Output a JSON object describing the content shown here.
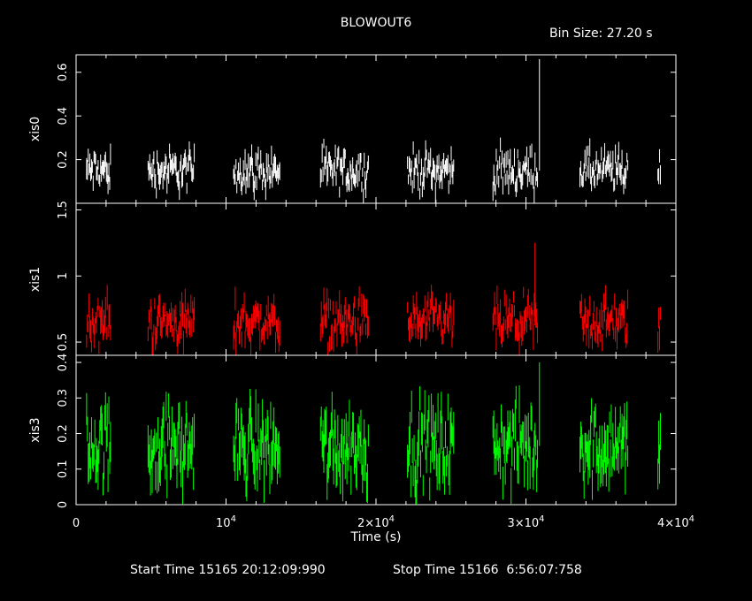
{
  "title": "BLOWOUT6",
  "bin_size_label": "Bin Size: 27.20 s",
  "xlabel": "Time (s)",
  "start_time_label": "Start Time 15165 20:12:09:990",
  "stop_time_label": "Stop Time 15166  6:56:07:758",
  "colors": {
    "background": "#000000",
    "axes": "#ffffff",
    "xis0": "#ffffff",
    "xis1": "#ff0000",
    "xis3": "#00ff00"
  },
  "chart_data": {
    "type": "scatter",
    "xlim": [
      0,
      40000
    ],
    "x_ticks": [
      {
        "value": 0,
        "label": "0"
      },
      {
        "value": 10000,
        "label": "10",
        "exp": "4"
      },
      {
        "value": 20000,
        "label": "2×10",
        "exp": "4"
      },
      {
        "value": 30000,
        "label": "3×10",
        "exp": "4"
      },
      {
        "value": 40000,
        "label": "4×10",
        "exp": "4"
      }
    ],
    "segments": [
      [
        700,
        2300
      ],
      [
        4800,
        7900
      ],
      [
        10500,
        13600
      ],
      [
        16300,
        19500
      ],
      [
        22100,
        25200
      ],
      [
        27800,
        30800
      ],
      [
        33600,
        36800
      ],
      [
        38800,
        39000
      ]
    ],
    "panels": [
      {
        "name": "xis0",
        "ylabel": "xis0",
        "ylim": [
          0,
          0.68
        ],
        "ticks": [
          0.2,
          0.4,
          0.6
        ],
        "tick_labels": [
          "0.2",
          "0.4",
          "0.6"
        ],
        "mean": 0.15,
        "spread": 0.045,
        "err": 0.035,
        "spike": {
          "x": 30900,
          "y": 0.66
        }
      },
      {
        "name": "xis1",
        "ylabel": "xis1",
        "ylim": [
          0.4,
          1.55
        ],
        "ticks": [
          0.5,
          1.0,
          1.5
        ],
        "tick_labels": [
          "0.5",
          "1",
          "1.5"
        ],
        "mean": 0.65,
        "spread": 0.09,
        "err": 0.07,
        "spike": {
          "x": 30600,
          "y": 1.25
        }
      },
      {
        "name": "xis3",
        "ylabel": "xis3",
        "ylim": [
          0,
          0.42
        ],
        "ticks": [
          0,
          0.1,
          0.2,
          0.3,
          0.4
        ],
        "tick_labels": [
          "0",
          "0.1",
          "0.2",
          "0.3",
          "0.4"
        ],
        "mean": 0.165,
        "spread": 0.055,
        "err": 0.045,
        "spike": {
          "x": 30900,
          "y": 0.4
        }
      }
    ]
  }
}
